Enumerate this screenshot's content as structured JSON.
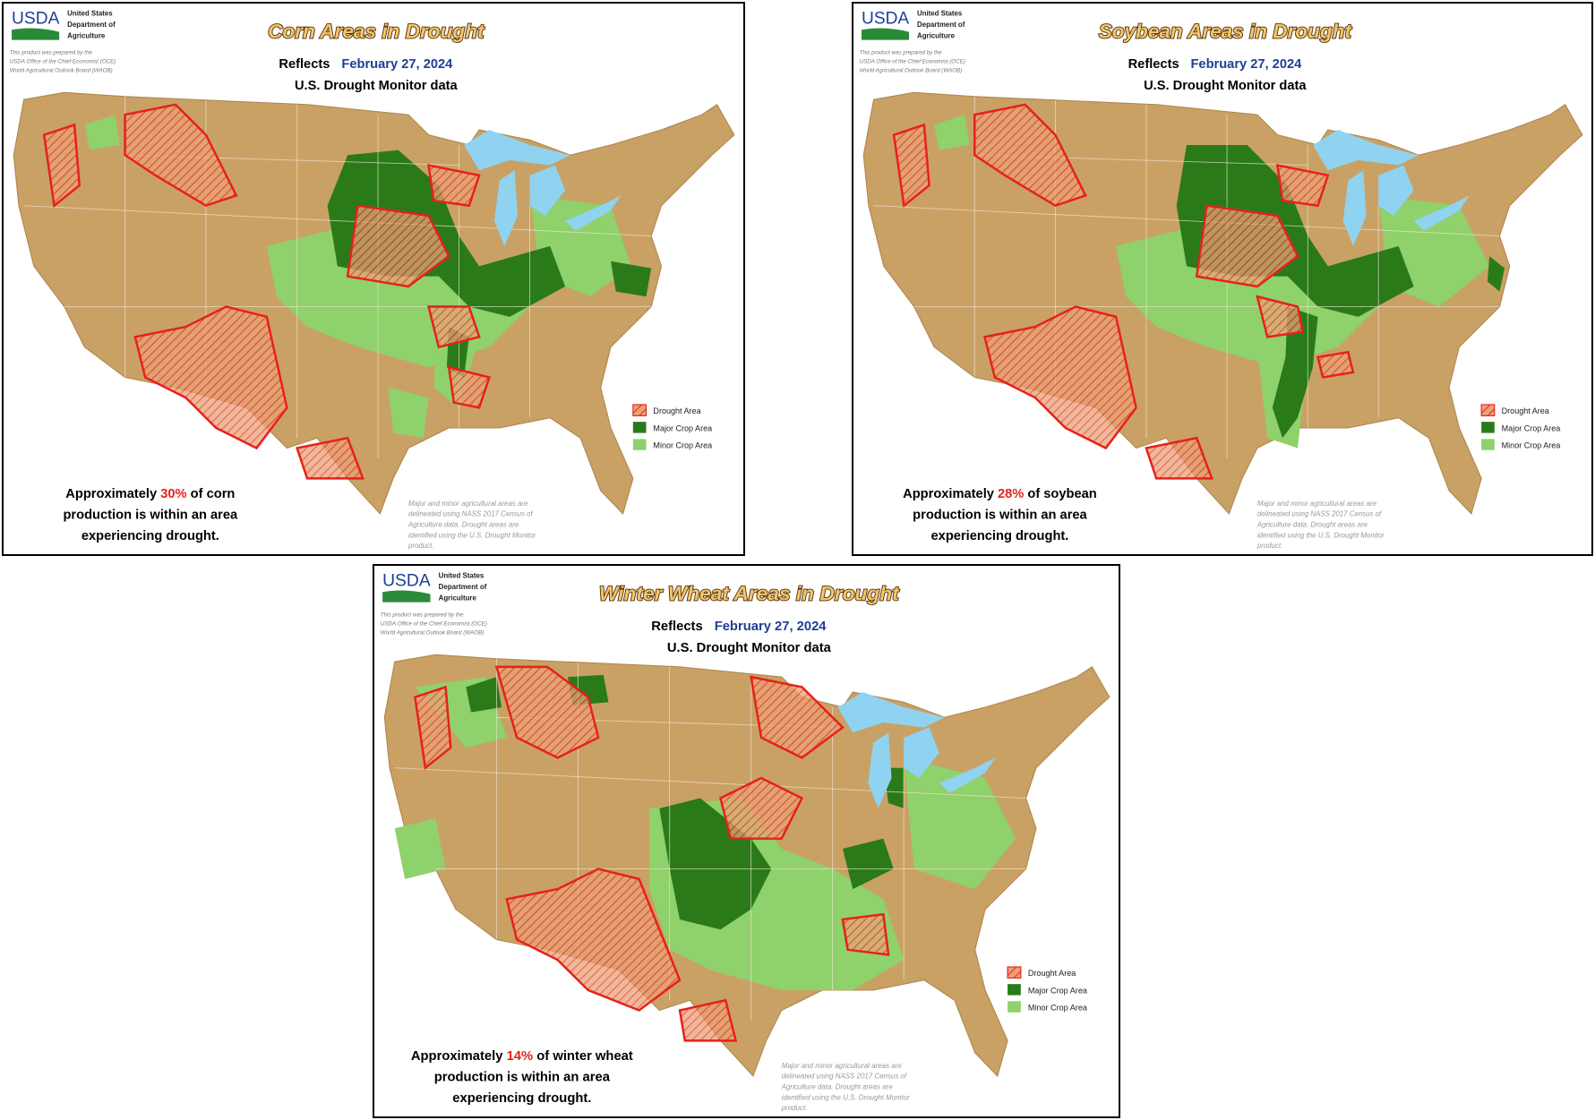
{
  "panels": [
    {
      "logo": "USDA",
      "agency": [
        "United States",
        "Department of",
        "Agriculture"
      ],
      "prepared": [
        "This product was prepared by the",
        "USDA Office of the Chief Economist (OCE)",
        "World Agricultural Outlook Board (WAOB)"
      ],
      "title": "Corn Areas in Drought",
      "reflects": "Reflects",
      "date": "February 27, 2024",
      "subtitle": "U.S. Drought Monitor data",
      "legend": [
        "Drought Area",
        "Major Crop Area",
        "Minor Crop Area"
      ],
      "statement": {
        "before": "Approximately",
        "percent": "30%",
        "after": "of corn",
        "lines": [
          "production is within an area",
          "experiencing drought."
        ]
      },
      "note": [
        "Major and minor agricultural areas are",
        "delineated using NASS 2017 Census of",
        "Agriculture data.  Drought areas are",
        "identified using the U.S. Drought Monitor",
        "product."
      ]
    },
    {
      "logo": "USDA",
      "agency": [
        "United States",
        "Department of",
        "Agriculture"
      ],
      "prepared": [
        "This product was prepared by the",
        "USDA Office of the Chief Economist (OCE)",
        "World Agricultural Outlook Board (WAOB)"
      ],
      "title": "Soybean Areas in Drought",
      "reflects": "Reflects",
      "date": "February 27, 2024",
      "subtitle": "U.S. Drought Monitor data",
      "legend": [
        "Drought Area",
        "Major Crop Area",
        "Minor Crop Area"
      ],
      "statement": {
        "before": "Approximately",
        "percent": "28%",
        "after": "of soybean",
        "lines": [
          "production is within an area",
          "experiencing drought."
        ]
      },
      "note": [
        "Major and minor agricultural areas are",
        "delineated using NASS 2017 Census of",
        "Agriculture data.  Drought areas are",
        "identified using the U.S. Drought Monitor",
        "product."
      ]
    },
    {
      "logo": "USDA",
      "agency": [
        "United States",
        "Department of",
        "Agriculture"
      ],
      "prepared": [
        "This product was prepared by the",
        "USDA Office of the Chief Economist (OCE)",
        "World Agricultural Outlook Board (WAOB)"
      ],
      "title": "Winter Wheat Areas in Drought",
      "reflects": "Reflects",
      "date": "February 27, 2024",
      "subtitle": "U.S. Drought Monitor data",
      "legend": [
        "Drought Area",
        "Major Crop Area",
        "Minor Crop Area"
      ],
      "statement": {
        "before": "Approximately",
        "percent": "14%",
        "after": "of winter wheat",
        "lines": [
          "production is within an area",
          "experiencing drought."
        ]
      },
      "note": [
        "Major and minor agricultural areas are",
        "delineated using NASS 2017 Census of",
        "Agriculture data.  Drought areas are",
        "identified using the U.S. Drought Monitor",
        "product."
      ]
    }
  ]
}
